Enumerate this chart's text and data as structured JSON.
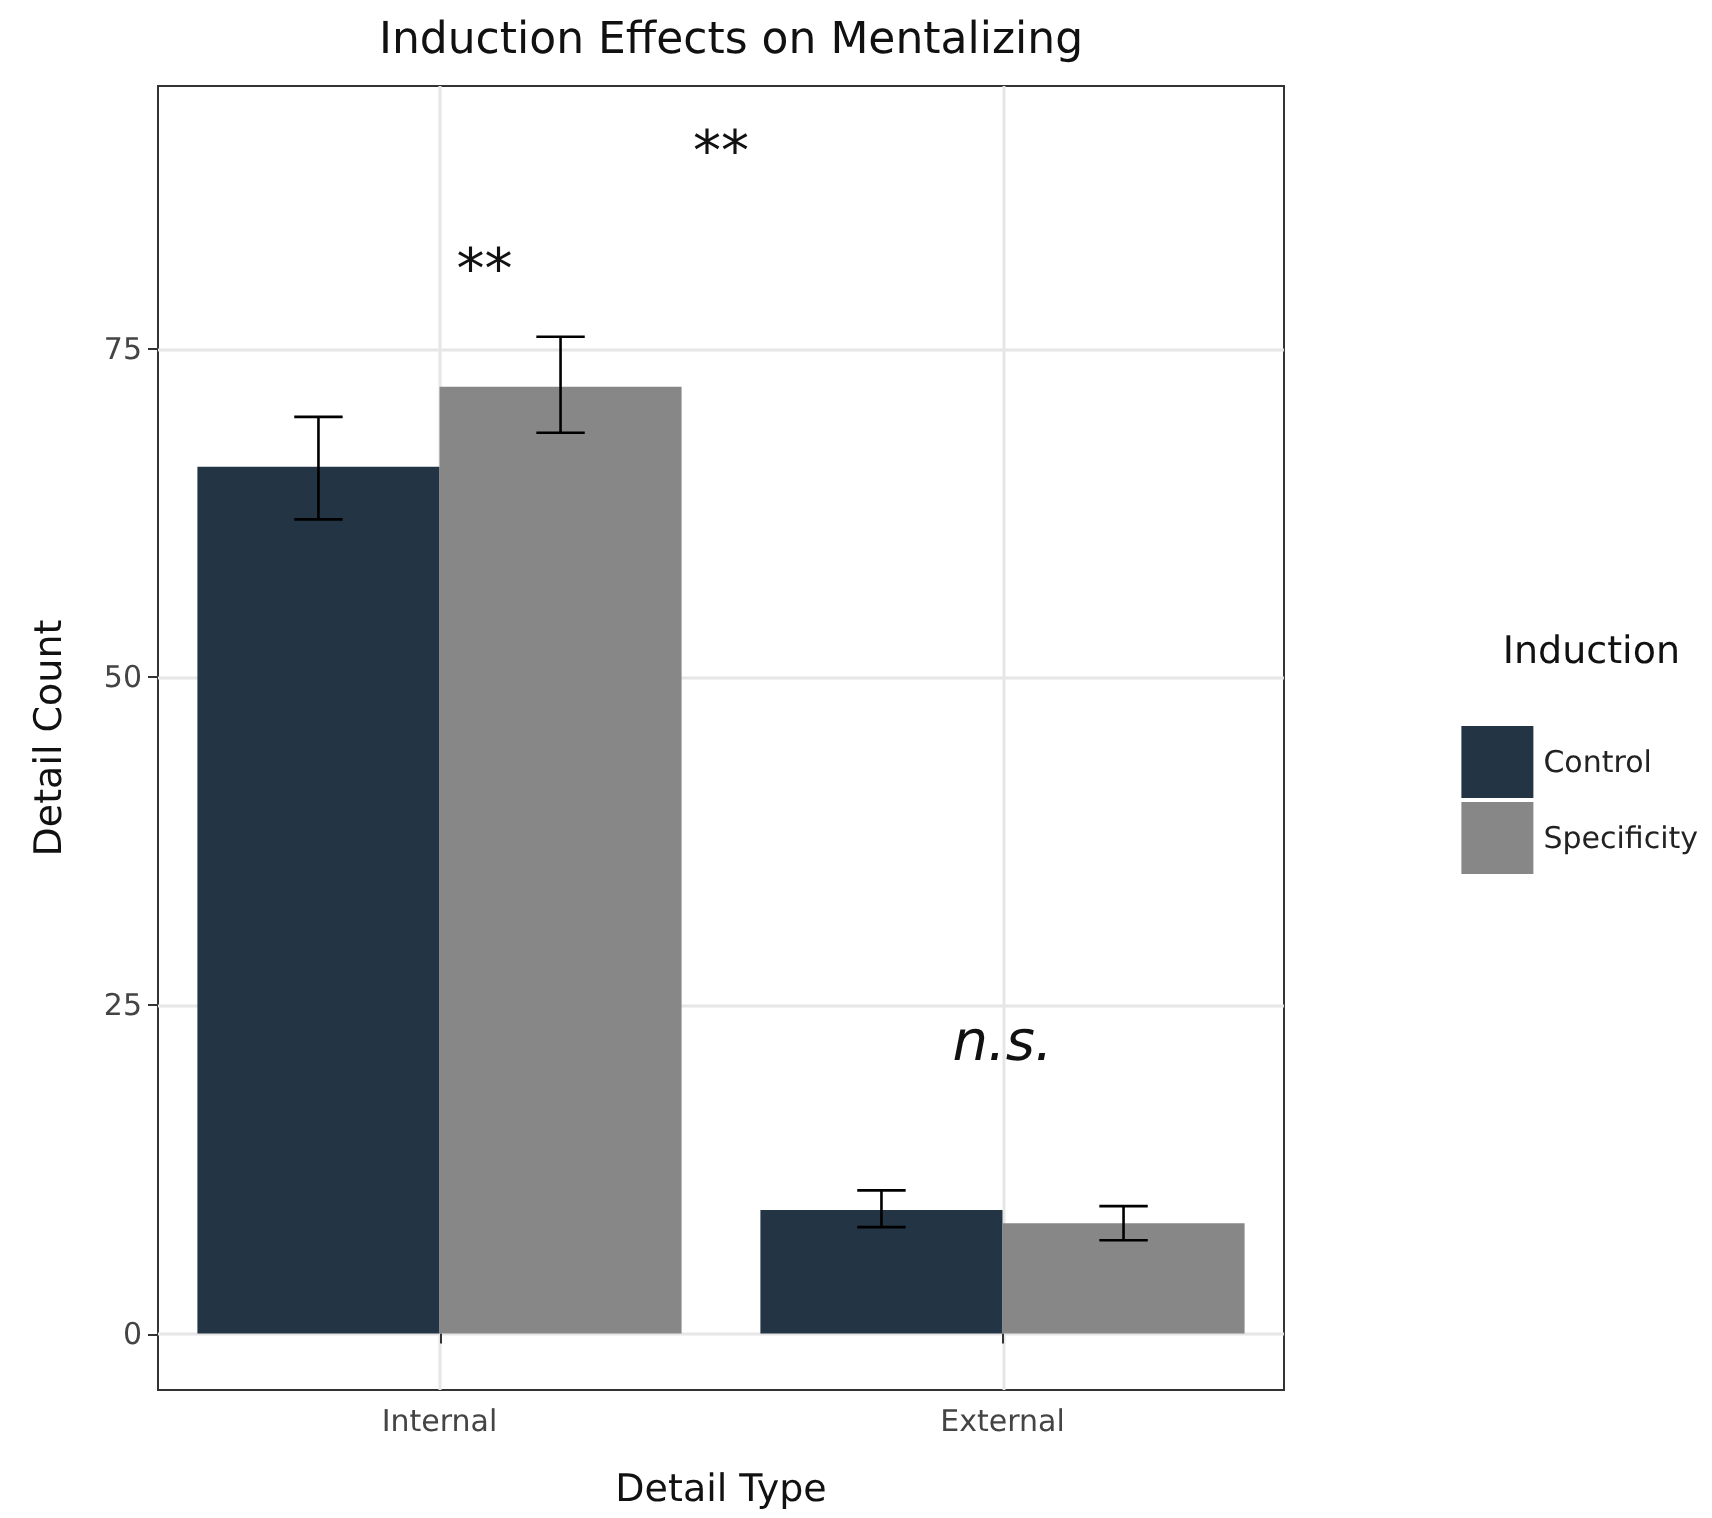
{
  "chart_data": {
    "type": "bar",
    "title": "Induction Effects on Mentalizing",
    "xlabel": "Detail Type",
    "ylabel": "Detail Count",
    "legend_title": "Induction",
    "categories": [
      "Internal",
      "External"
    ],
    "series": [
      {
        "name": "Control",
        "color": "#233445",
        "values": [
          66,
          9.4
        ],
        "errors": [
          [
            62,
            69.8
          ],
          [
            8.1,
            10.9
          ]
        ]
      },
      {
        "name": "Specificity",
        "color": "#878787",
        "values": [
          72.1,
          8.4
        ],
        "errors": [
          [
            68.6,
            75.9
          ],
          [
            7.1,
            9.7
          ]
        ]
      }
    ],
    "ylim": [
      -4.3,
      95
    ],
    "yticks": [
      0,
      25,
      50,
      75
    ],
    "grid": true,
    "legend": "right",
    "annotations": [
      "**",
      "**",
      "n.s."
    ]
  }
}
